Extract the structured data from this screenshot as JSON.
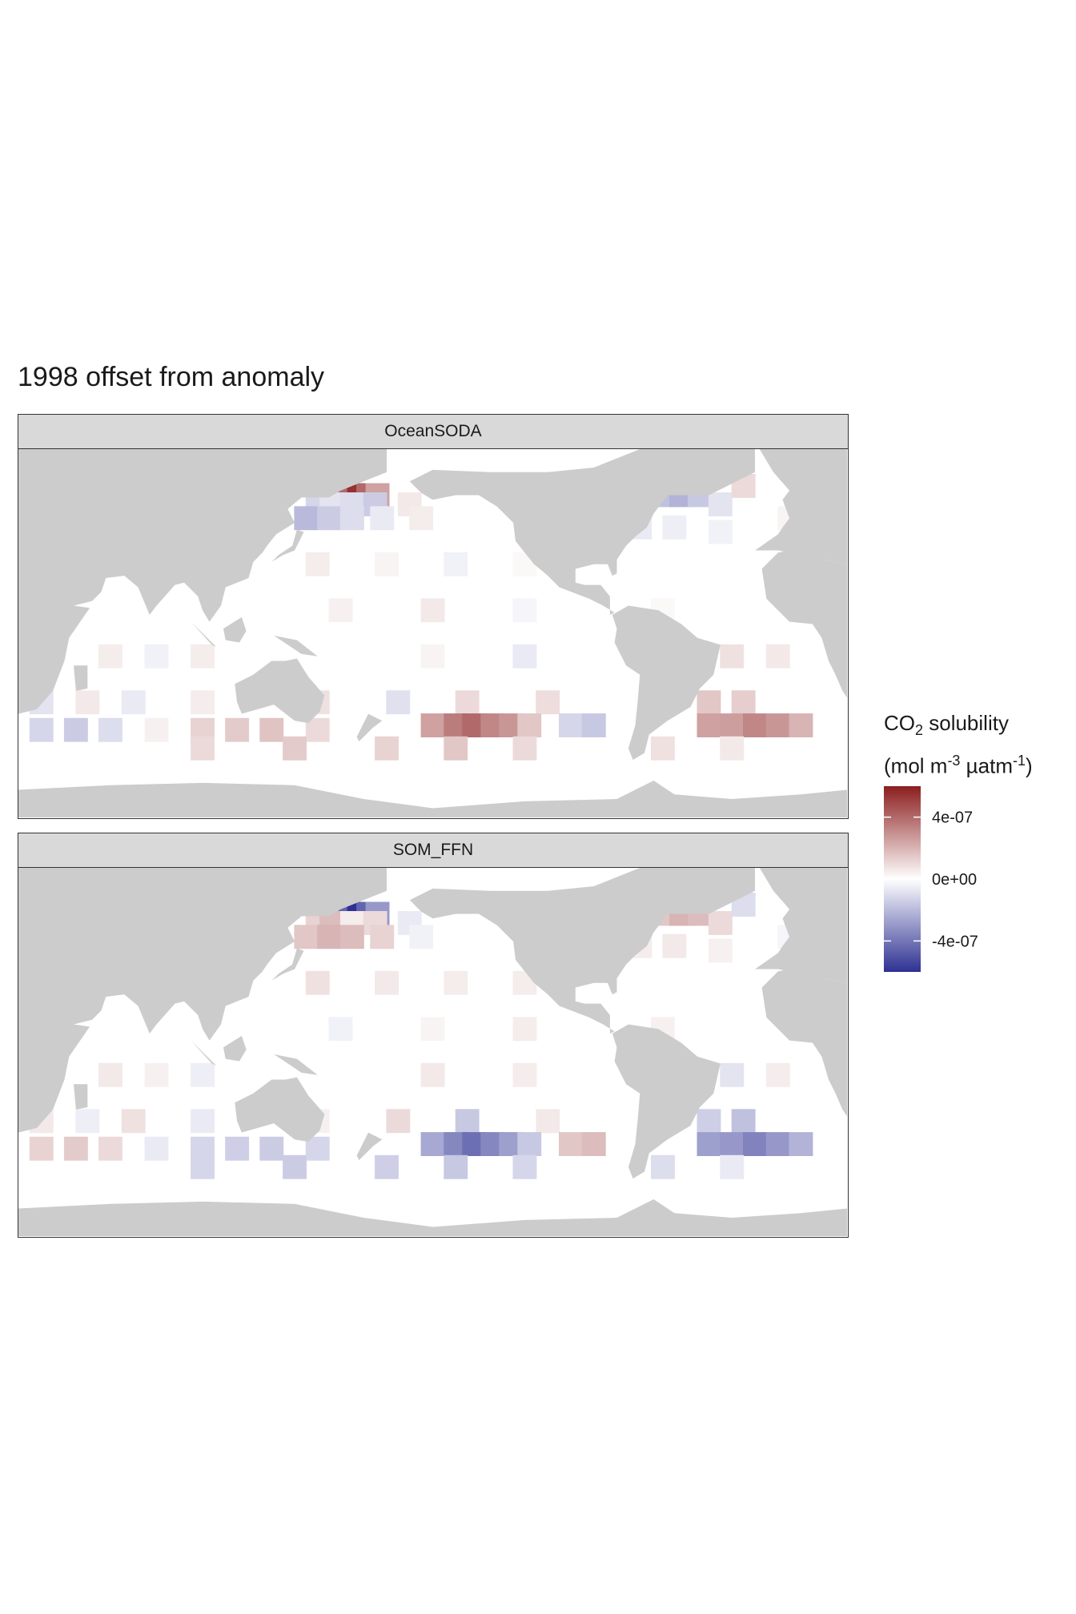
{
  "title": "1998 offset from anomaly",
  "legend": {
    "title_line1_main": "CO",
    "title_line1_sub": "2",
    "title_line1_rest": " solubility",
    "title_line2_a": "(mol m",
    "title_line2_sup1": "-3",
    "title_line2_b": " µatm",
    "title_line2_sup2": "-1",
    "title_line2_c": ")",
    "range": [
      -6e-07,
      6e-07
    ],
    "ticks": [
      {
        "value": 4e-07,
        "label": "4e-07"
      },
      {
        "value": 0,
        "label": "0e+00"
      },
      {
        "value": -4e-07,
        "label": "-4e-07"
      }
    ],
    "colors": {
      "high": "#8b1e1e",
      "mid": "#ffffff",
      "low": "#2e3192"
    }
  },
  "colors": {
    "land": "#cccccc",
    "ocean": "#ffffff",
    "strip": "#d9d9d9"
  },
  "chart_data": {
    "type": "heatmap",
    "xlim": [
      20,
      380
    ],
    "ylim": [
      -80,
      80
    ],
    "facets": [
      {
        "name": "OceanSODA",
        "cells": [
          [
            160,
            60,
            2.2e-07
          ],
          [
            164,
            60,
            4e-07
          ],
          [
            168,
            60,
            5.5e-07
          ],
          [
            172,
            60,
            4e-07
          ],
          [
            176,
            60,
            2.5e-07
          ],
          [
            150,
            56,
            -1.2e-07
          ],
          [
            156,
            56,
            -8e-08
          ],
          [
            165,
            56,
            -1e-07
          ],
          [
            175,
            56,
            -1.5e-07
          ],
          [
            190,
            56,
            6e-08
          ],
          [
            145,
            50,
            -2e-07
          ],
          [
            155,
            50,
            -1.5e-07
          ],
          [
            165,
            50,
            -1e-07
          ],
          [
            178,
            50,
            -6e-08
          ],
          [
            195,
            50,
            5e-08
          ],
          [
            300,
            60,
            -1.8e-07
          ],
          [
            308,
            60,
            -2.2e-07
          ],
          [
            316,
            60,
            -1.6e-07
          ],
          [
            325,
            56,
            -8e-08
          ],
          [
            335,
            64,
            1e-07
          ],
          [
            290,
            46,
            -6e-08
          ],
          [
            305,
            46,
            -5e-08
          ],
          [
            325,
            44,
            -4e-08
          ],
          [
            355,
            50,
            3e-08
          ],
          [
            150,
            30,
            5e-08
          ],
          [
            180,
            30,
            3e-08
          ],
          [
            210,
            30,
            -4e-08
          ],
          [
            240,
            30,
            2e-08
          ],
          [
            160,
            10,
            4e-08
          ],
          [
            200,
            10,
            6e-08
          ],
          [
            240,
            10,
            -3e-08
          ],
          [
            300,
            10,
            2e-08
          ],
          [
            60,
            -10,
            5e-08
          ],
          [
            80,
            -10,
            -4e-08
          ],
          [
            100,
            -10,
            5e-08
          ],
          [
            200,
            -10,
            3e-08
          ],
          [
            240,
            -10,
            -6e-08
          ],
          [
            330,
            -10,
            8e-08
          ],
          [
            350,
            -10,
            6e-08
          ],
          [
            30,
            -30,
            -8e-08
          ],
          [
            50,
            -30,
            6e-08
          ],
          [
            70,
            -30,
            -6e-08
          ],
          [
            100,
            -30,
            5e-08
          ],
          [
            150,
            -30,
            8e-08
          ],
          [
            185,
            -30,
            -9e-08
          ],
          [
            215,
            -30,
            1e-07
          ],
          [
            250,
            -30,
            9e-08
          ],
          [
            320,
            -30,
            1.5e-07
          ],
          [
            335,
            -30,
            1.3e-07
          ],
          [
            30,
            -42,
            -1.2e-07
          ],
          [
            45,
            -42,
            -1.5e-07
          ],
          [
            60,
            -42,
            -1e-07
          ],
          [
            80,
            -42,
            4e-08
          ],
          [
            100,
            -42,
            1.2e-07
          ],
          [
            115,
            -42,
            1.4e-07
          ],
          [
            130,
            -42,
            1.6e-07
          ],
          [
            150,
            -42,
            1e-07
          ],
          [
            200,
            -40,
            2.5e-07
          ],
          [
            210,
            -40,
            3.5e-07
          ],
          [
            218,
            -40,
            4e-07
          ],
          [
            226,
            -40,
            3.2e-07
          ],
          [
            234,
            -40,
            2.8e-07
          ],
          [
            242,
            -40,
            1.5e-07
          ],
          [
            260,
            -40,
            -1.2e-07
          ],
          [
            270,
            -40,
            -1.6e-07
          ],
          [
            320,
            -40,
            2.5e-07
          ],
          [
            330,
            -40,
            2.6e-07
          ],
          [
            340,
            -40,
            3.2e-07
          ],
          [
            350,
            -40,
            2.8e-07
          ],
          [
            360,
            -40,
            2e-07
          ],
          [
            100,
            -50,
            1e-07
          ],
          [
            140,
            -50,
            1.4e-07
          ],
          [
            180,
            -50,
            1.2e-07
          ],
          [
            210,
            -50,
            1.5e-07
          ],
          [
            240,
            -50,
            1e-07
          ],
          [
            300,
            -50,
            8e-08
          ],
          [
            330,
            -50,
            6e-08
          ]
        ]
      },
      {
        "name": "SOM_FFN",
        "cells": [
          [
            160,
            60,
            -3e-07
          ],
          [
            164,
            60,
            -4.5e-07
          ],
          [
            168,
            60,
            -6e-07
          ],
          [
            172,
            60,
            -4.5e-07
          ],
          [
            176,
            60,
            -3e-07
          ],
          [
            150,
            56,
            1.2e-07
          ],
          [
            156,
            56,
            1.8e-07
          ],
          [
            165,
            56,
            5e-08
          ],
          [
            175,
            56,
            1e-07
          ],
          [
            190,
            56,
            -6e-08
          ],
          [
            145,
            50,
            1.5e-07
          ],
          [
            155,
            50,
            2e-07
          ],
          [
            165,
            50,
            1.8e-07
          ],
          [
            178,
            50,
            1.2e-07
          ],
          [
            195,
            50,
            -4e-08
          ],
          [
            300,
            60,
            1.5e-07
          ],
          [
            308,
            60,
            2e-07
          ],
          [
            316,
            60,
            1.8e-07
          ],
          [
            325,
            56,
            1e-07
          ],
          [
            335,
            64,
            -1e-07
          ],
          [
            290,
            46,
            5e-08
          ],
          [
            305,
            46,
            6e-08
          ],
          [
            325,
            44,
            4e-08
          ],
          [
            355,
            50,
            -3e-08
          ],
          [
            150,
            30,
            8e-08
          ],
          [
            180,
            30,
            6e-08
          ],
          [
            210,
            30,
            5e-08
          ],
          [
            240,
            30,
            5e-08
          ],
          [
            160,
            10,
            -4e-08
          ],
          [
            200,
            10,
            3e-08
          ],
          [
            240,
            10,
            5e-08
          ],
          [
            300,
            10,
            4e-08
          ],
          [
            60,
            -10,
            6e-08
          ],
          [
            80,
            -10,
            4e-08
          ],
          [
            100,
            -10,
            -5e-08
          ],
          [
            200,
            -10,
            6e-08
          ],
          [
            240,
            -10,
            5e-08
          ],
          [
            330,
            -10,
            -8e-08
          ],
          [
            350,
            -10,
            5e-08
          ],
          [
            30,
            -30,
            6e-08
          ],
          [
            50,
            -30,
            -5e-08
          ],
          [
            70,
            -30,
            8e-08
          ],
          [
            100,
            -30,
            -6e-08
          ],
          [
            150,
            -30,
            4e-08
          ],
          [
            185,
            -30,
            1e-07
          ],
          [
            215,
            -30,
            -1.6e-07
          ],
          [
            250,
            -30,
            6e-08
          ],
          [
            320,
            -30,
            -1.4e-07
          ],
          [
            335,
            -30,
            -1.8e-07
          ],
          [
            30,
            -42,
            1.2e-07
          ],
          [
            45,
            -42,
            1.4e-07
          ],
          [
            60,
            -42,
            1e-07
          ],
          [
            80,
            -42,
            -6e-08
          ],
          [
            100,
            -42,
            -1.2e-07
          ],
          [
            115,
            -42,
            -1.4e-07
          ],
          [
            130,
            -42,
            -1.5e-07
          ],
          [
            150,
            -42,
            -1.2e-07
          ],
          [
            200,
            -40,
            -2.5e-07
          ],
          [
            210,
            -40,
            -3.5e-07
          ],
          [
            218,
            -40,
            -4.2e-07
          ],
          [
            226,
            -40,
            -3.5e-07
          ],
          [
            234,
            -40,
            -2.8e-07
          ],
          [
            242,
            -40,
            -1.6e-07
          ],
          [
            260,
            -40,
            1.5e-07
          ],
          [
            270,
            -40,
            1.8e-07
          ],
          [
            320,
            -40,
            -2.8e-07
          ],
          [
            330,
            -40,
            -3e-07
          ],
          [
            340,
            -40,
            -3.6e-07
          ],
          [
            350,
            -40,
            -3e-07
          ],
          [
            360,
            -40,
            -2.2e-07
          ],
          [
            100,
            -50,
            -1.2e-07
          ],
          [
            140,
            -50,
            -1.5e-07
          ],
          [
            180,
            -50,
            -1.4e-07
          ],
          [
            210,
            -50,
            -1.6e-07
          ],
          [
            240,
            -50,
            -1.2e-07
          ],
          [
            300,
            -50,
            -1e-07
          ],
          [
            330,
            -50,
            -6e-08
          ]
        ]
      }
    ]
  }
}
